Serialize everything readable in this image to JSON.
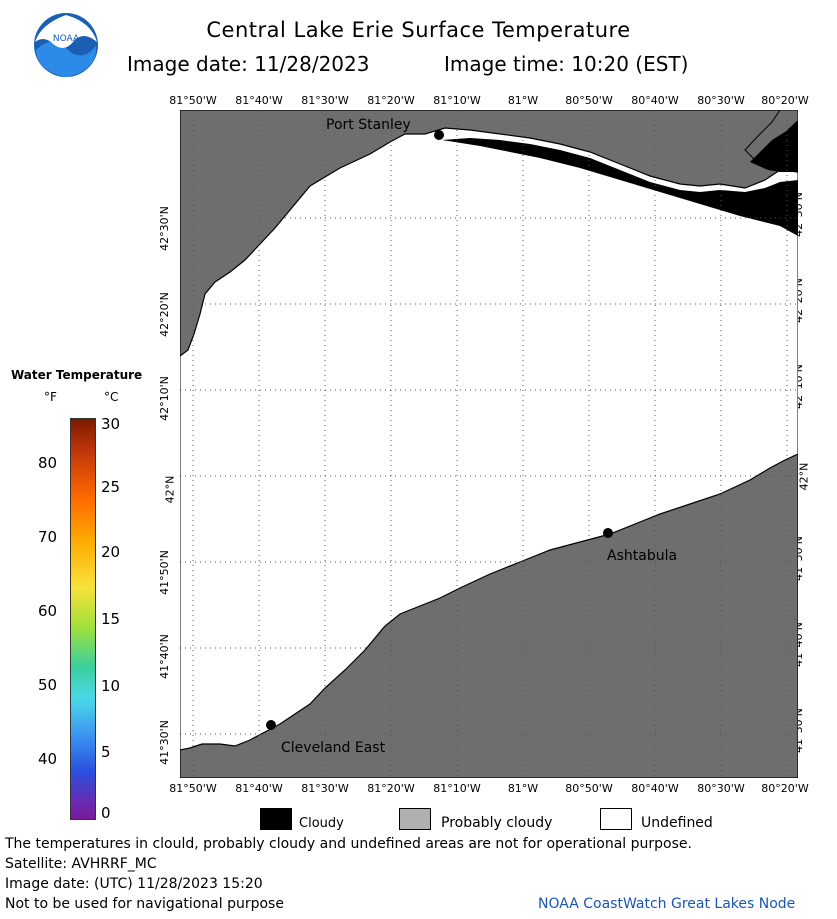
{
  "header": {
    "title": "Central Lake Erie Surface Temperature",
    "image_date": "Image date: 11/28/2023",
    "image_time": "Image time: 10:20 (EST)"
  },
  "logo": {
    "text": "NOAA"
  },
  "map": {
    "lon_labels": [
      "81°50'W",
      "81°40'W",
      "81°30'W",
      "81°20'W",
      "81°10'W",
      "81°W",
      "80°50'W",
      "80°40'W",
      "80°30'W",
      "80°20'W"
    ],
    "lat_labels": [
      "42°30'N",
      "42°20'N",
      "42°10'N",
      "42°N",
      "41°50'N",
      "41°40'N",
      "41°30'N"
    ],
    "places": {
      "port_stanley": "Port Stanley",
      "ashtabula": "Ashtabula",
      "cleveland_east": "Cleveland East"
    },
    "colors": {
      "land": "#6e6e6e",
      "water_undefined": "#ffffff",
      "cloud": "#000000",
      "grid": "#333333"
    }
  },
  "legend": {
    "title": "Water Temperature",
    "unit_f": "°F",
    "unit_c": "°C",
    "f_ticks": [
      "80",
      "70",
      "60",
      "50",
      "40"
    ],
    "c_ticks": [
      "30",
      "25",
      "20",
      "15",
      "10",
      "5",
      "0"
    ]
  },
  "key": {
    "cloudy": "Cloudy",
    "probably_cloudy": "Probably cloudy",
    "undefined": "Undefined"
  },
  "footer": {
    "disclaimer": "The temperatures in clould, probably cloudy and undefined areas are not for operational purpose.",
    "satellite": "Satellite: AVHRRF_MC",
    "utc_date": "Image date: (UTC) 11/28/2023  15:20",
    "nav_warning": "Not to be used for navigational purpose",
    "credit": "NOAA CoastWatch Great Lakes Node"
  }
}
